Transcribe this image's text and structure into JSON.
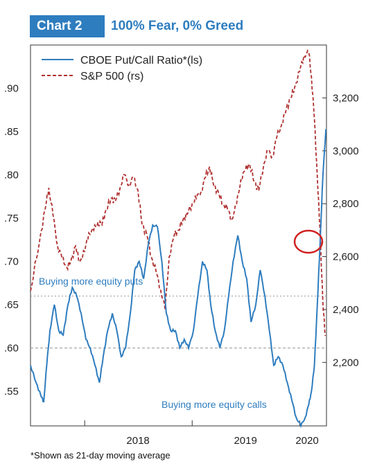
{
  "header": {
    "chart_number": "Chart 2",
    "title": "100% Fear, 0% Greed"
  },
  "footnote": "*Shown as 21-day moving average",
  "colors": {
    "put_call_line": "#2e7dbf",
    "sp500_line": "#b03030",
    "highlight_circle": "#d02020",
    "reference_lines": "#999999"
  },
  "chart_data": {
    "type": "line",
    "title": "100% Fear, 0% Greed",
    "legend": [
      "CBOE Put/Call Ratio*(ls)",
      "S&P 500 (rs)"
    ],
    "legend_position": "top-left",
    "x_tick_labels": [
      "2018",
      "2019",
      "2020"
    ],
    "x_range": [
      "2017-07",
      "2020-04"
    ],
    "left_axis": {
      "ticks": [
        ".55",
        ".60",
        ".65",
        ".70",
        ".75",
        ".80",
        ".85",
        ".90"
      ],
      "range": [
        0.51,
        0.95
      ]
    },
    "right_axis": {
      "ticks": [
        "2,200",
        "2,400",
        "2,600",
        "2,800",
        "3,000",
        "3,200"
      ],
      "range": [
        1960,
        3400
      ]
    },
    "reference_lines": [
      0.6,
      0.66
    ],
    "annotations": [
      "Buying more equity puts",
      "Buying more equity calls"
    ],
    "series": [
      {
        "name": "CBOE Put/Call Ratio*(ls)",
        "axis": "left",
        "style": "solid",
        "points": [
          [
            "2017-07-01",
            0.58
          ],
          [
            "2017-07-20",
            0.56
          ],
          [
            "2017-08-05",
            0.545
          ],
          [
            "2017-08-15",
            0.538
          ],
          [
            "2017-08-25",
            0.58
          ],
          [
            "2017-09-05",
            0.62
          ],
          [
            "2017-09-20",
            0.65
          ],
          [
            "2017-10-05",
            0.62
          ],
          [
            "2017-10-20",
            0.615
          ],
          [
            "2017-11-05",
            0.65
          ],
          [
            "2017-11-20",
            0.67
          ],
          [
            "2017-12-05",
            0.66
          ],
          [
            "2017-12-20",
            0.64
          ],
          [
            "2018-01-05",
            0.61
          ],
          [
            "2018-01-20",
            0.6
          ],
          [
            "2018-02-05",
            0.58
          ],
          [
            "2018-02-20",
            0.56
          ],
          [
            "2018-03-05",
            0.59
          ],
          [
            "2018-03-20",
            0.62
          ],
          [
            "2018-04-05",
            0.64
          ],
          [
            "2018-04-20",
            0.62
          ],
          [
            "2018-05-05",
            0.59
          ],
          [
            "2018-05-20",
            0.6
          ],
          [
            "2018-06-05",
            0.64
          ],
          [
            "2018-06-20",
            0.69
          ],
          [
            "2018-07-05",
            0.7
          ],
          [
            "2018-07-20",
            0.68
          ],
          [
            "2018-08-05",
            0.72
          ],
          [
            "2018-08-20",
            0.742
          ],
          [
            "2018-09-05",
            0.74
          ],
          [
            "2018-09-20",
            0.7
          ],
          [
            "2018-10-05",
            0.64
          ],
          [
            "2018-10-20",
            0.62
          ],
          [
            "2018-11-05",
            0.62
          ],
          [
            "2018-11-20",
            0.6
          ],
          [
            "2018-12-05",
            0.61
          ],
          [
            "2018-12-20",
            0.6
          ],
          [
            "2019-01-05",
            0.62
          ],
          [
            "2019-01-20",
            0.66
          ],
          [
            "2019-02-05",
            0.7
          ],
          [
            "2019-02-20",
            0.69
          ],
          [
            "2019-03-05",
            0.65
          ],
          [
            "2019-03-20",
            0.62
          ],
          [
            "2019-04-05",
            0.6
          ],
          [
            "2019-04-20",
            0.62
          ],
          [
            "2019-05-05",
            0.66
          ],
          [
            "2019-05-20",
            0.7
          ],
          [
            "2019-06-05",
            0.73
          ],
          [
            "2019-06-20",
            0.7
          ],
          [
            "2019-07-05",
            0.68
          ],
          [
            "2019-07-20",
            0.63
          ],
          [
            "2019-08-05",
            0.65
          ],
          [
            "2019-08-20",
            0.69
          ],
          [
            "2019-09-05",
            0.66
          ],
          [
            "2019-09-20",
            0.62
          ],
          [
            "2019-10-05",
            0.58
          ],
          [
            "2019-10-20",
            0.59
          ],
          [
            "2019-11-05",
            0.58
          ],
          [
            "2019-11-20",
            0.56
          ],
          [
            "2019-12-05",
            0.54
          ],
          [
            "2019-12-20",
            0.52
          ],
          [
            "2020-01-05",
            0.51
          ],
          [
            "2020-01-20",
            0.52
          ],
          [
            "2020-02-01",
            0.535
          ],
          [
            "2020-02-10",
            0.55
          ],
          [
            "2020-02-20",
            0.58
          ],
          [
            "2020-03-01",
            0.65
          ],
          [
            "2020-03-10",
            0.72
          ],
          [
            "2020-03-20",
            0.8
          ],
          [
            "2020-03-30",
            0.853
          ]
        ]
      },
      {
        "name": "S&P 500 (rs)",
        "axis": "right",
        "style": "dashed",
        "points": [
          [
            "2017-07-01",
            2470
          ],
          [
            "2017-08-01",
            2660
          ],
          [
            "2017-08-20",
            2780
          ],
          [
            "2017-09-01",
            2860
          ],
          [
            "2017-09-15",
            2760
          ],
          [
            "2017-10-01",
            2640
          ],
          [
            "2017-10-15",
            2600
          ],
          [
            "2017-11-01",
            2560
          ],
          [
            "2017-11-15",
            2580
          ],
          [
            "2017-12-01",
            2640
          ],
          [
            "2017-12-15",
            2580
          ],
          [
            "2018-01-01",
            2620
          ],
          [
            "2018-01-15",
            2690
          ],
          [
            "2018-02-01",
            2700
          ],
          [
            "2018-02-15",
            2730
          ],
          [
            "2018-03-01",
            2720
          ],
          [
            "2018-03-15",
            2780
          ],
          [
            "2018-04-01",
            2820
          ],
          [
            "2018-04-15",
            2810
          ],
          [
            "2018-05-01",
            2860
          ],
          [
            "2018-05-15",
            2910
          ],
          [
            "2018-06-01",
            2870
          ],
          [
            "2018-06-15",
            2900
          ],
          [
            "2018-07-01",
            2850
          ],
          [
            "2018-07-15",
            2720
          ],
          [
            "2018-08-01",
            2680
          ],
          [
            "2018-08-15",
            2600
          ],
          [
            "2018-09-01",
            2540
          ],
          [
            "2018-09-15",
            2480
          ],
          [
            "2018-10-01",
            2400
          ],
          [
            "2018-10-15",
            2600
          ],
          [
            "2018-11-01",
            2680
          ],
          [
            "2018-11-15",
            2700
          ],
          [
            "2018-12-01",
            2740
          ],
          [
            "2018-12-15",
            2760
          ],
          [
            "2019-01-01",
            2800
          ],
          [
            "2019-01-15",
            2820
          ],
          [
            "2019-02-01",
            2850
          ],
          [
            "2019-02-15",
            2900
          ],
          [
            "2019-03-01",
            2940
          ],
          [
            "2019-03-15",
            2870
          ],
          [
            "2019-04-01",
            2840
          ],
          [
            "2019-04-15",
            2800
          ],
          [
            "2019-05-01",
            2780
          ],
          [
            "2019-05-15",
            2740
          ],
          [
            "2019-06-01",
            2800
          ],
          [
            "2019-06-15",
            2890
          ],
          [
            "2019-07-01",
            2930
          ],
          [
            "2019-07-15",
            2950
          ],
          [
            "2019-08-01",
            2880
          ],
          [
            "2019-08-15",
            2850
          ],
          [
            "2019-09-01",
            2950
          ],
          [
            "2019-09-15",
            3000
          ],
          [
            "2019-10-01",
            2980
          ],
          [
            "2019-10-15",
            3050
          ],
          [
            "2019-11-01",
            3100
          ],
          [
            "2019-11-15",
            3150
          ],
          [
            "2019-12-01",
            3200
          ],
          [
            "2019-12-15",
            3240
          ],
          [
            "2020-01-01",
            3300
          ],
          [
            "2020-01-15",
            3360
          ],
          [
            "2020-02-01",
            3370
          ],
          [
            "2020-02-10",
            3280
          ],
          [
            "2020-02-20",
            3120
          ],
          [
            "2020-03-01",
            2900
          ],
          [
            "2020-03-10",
            2700
          ],
          [
            "2020-03-20",
            2420
          ],
          [
            "2020-03-28",
            2300
          ]
        ]
      }
    ]
  }
}
